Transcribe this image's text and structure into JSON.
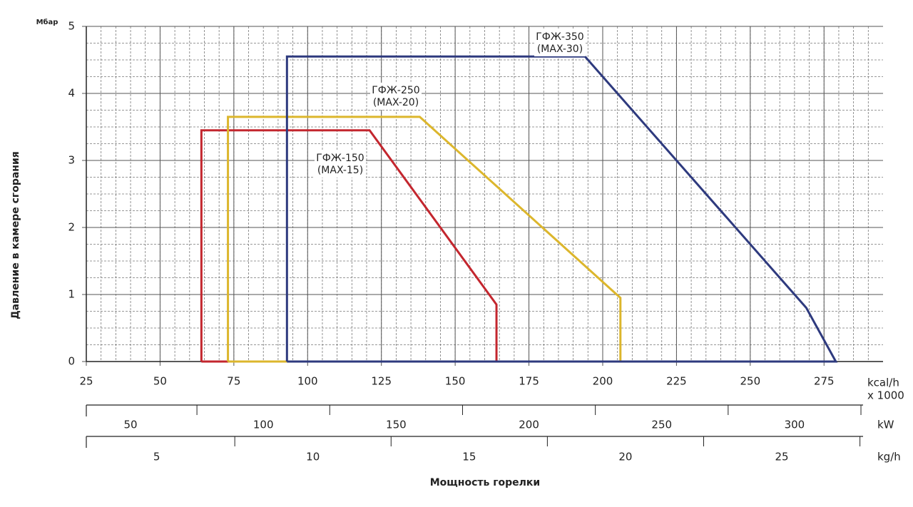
{
  "chart_data": {
    "type": "line",
    "y_label": "Давление в камере сгорания",
    "y_unit": "Мбар",
    "x_label": "Мощность горелки",
    "x_unit": [
      "kcal/h",
      "x 1000"
    ],
    "xlim": [
      25,
      295
    ],
    "xticks": [
      25,
      50,
      75,
      100,
      125,
      150,
      175,
      200,
      225,
      250,
      275
    ],
    "xminor": 5,
    "ylim": [
      0,
      5
    ],
    "yticks": [
      0,
      1,
      2,
      3,
      4,
      5
    ],
    "yminor": 0.25,
    "grid": true,
    "series": [
      {
        "name": "ГФЖ-150",
        "note": "(MAX-15)",
        "color": "#c3262e",
        "x": [
          64,
          64,
          121,
          164,
          164,
          64
        ],
        "values": [
          0,
          3.45,
          3.45,
          0.85,
          0,
          0
        ]
      },
      {
        "name": "ГФЖ-250",
        "note": "(MAX-20)",
        "color": "#dcb62c",
        "x": [
          73,
          73,
          138,
          206,
          206,
          73
        ],
        "values": [
          0,
          3.65,
          3.65,
          0.95,
          0,
          0
        ]
      },
      {
        "name": "ГФЖ-350",
        "note": "(MAX-30)",
        "color": "#2e3a7e",
        "x": [
          93,
          93,
          194,
          269,
          279,
          93
        ],
        "values": [
          0,
          4.55,
          4.55,
          0.8,
          0,
          0
        ]
      }
    ],
    "secondary_axes": [
      {
        "unit": "kW",
        "lim": [
          33.35,
          325.8
        ],
        "ticks": [
          50,
          100,
          150,
          200,
          250,
          300
        ]
      },
      {
        "unit": "kg/h",
        "lim": [
          2.75,
          27.6
        ],
        "ticks": [
          5,
          10,
          15,
          20,
          25
        ]
      }
    ]
  }
}
